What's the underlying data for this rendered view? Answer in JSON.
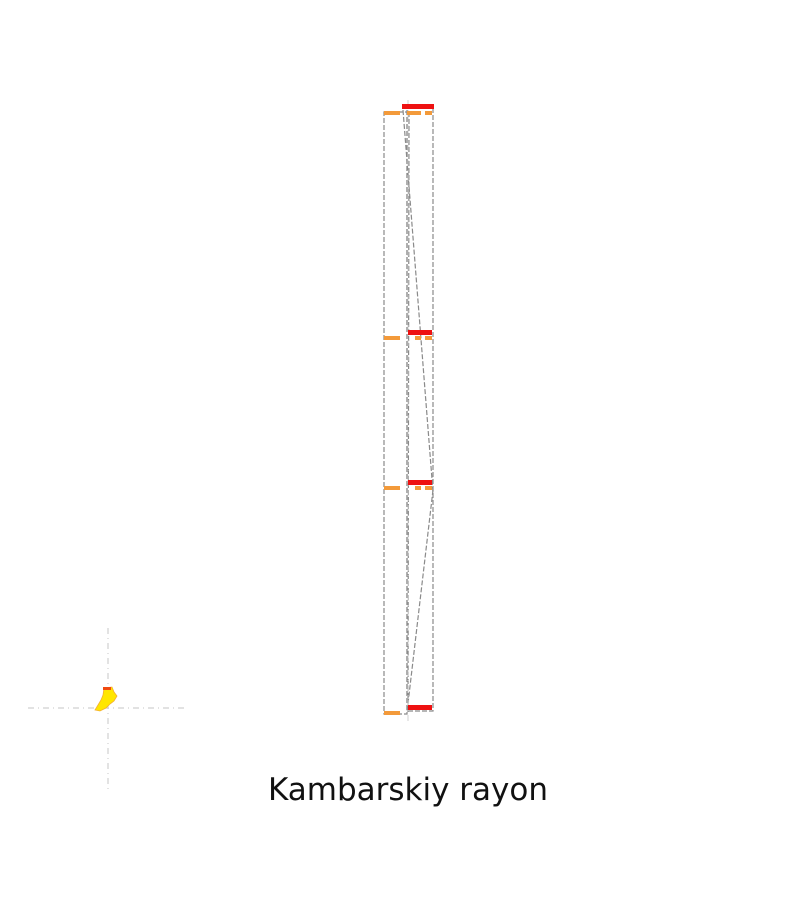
{
  "caption": "Kambarskiy rayon",
  "colors": {
    "background": "#ffffff",
    "frame_line": "#8a8a8a",
    "guide_line": "#d0d0d0",
    "red_marker": "#ee1111",
    "orange_marker": "#f39a3a",
    "yellow_shape": "#ffe600",
    "yellow_shape_edge": "#f4a020",
    "text": "#111111"
  }
}
